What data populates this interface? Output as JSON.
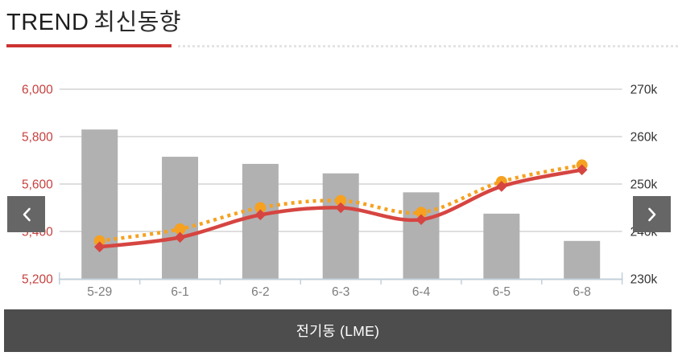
{
  "header": {
    "title_en": "TREND",
    "title_ko": "최신동향"
  },
  "carousel": {
    "prev_icon": "chevron-left",
    "next_icon": "chevron-right"
  },
  "caption": {
    "label": "전기동 (LME)"
  },
  "colors": {
    "accent_red": "#cc3232",
    "line_red": "#d64541",
    "line_orange": "#f6a11f",
    "bar_gray": "#b1b1b1",
    "grid_gray": "#d4d4d4",
    "axis_line": "#c2cfda",
    "x_label_gray": "#7d7d7d",
    "nav_button_bg": "#666666",
    "caption_bg": "#4d4d4d"
  },
  "chart_data": {
    "type": "bar",
    "subtype": "combo bar+line, dual axis",
    "title": "전기동 (LME)",
    "categories": [
      "5-29",
      "6-1",
      "6-2",
      "6-3",
      "6-4",
      "6-5",
      "6-8"
    ],
    "series": [
      {
        "name": "price-bars",
        "type": "bar",
        "axis": "left",
        "color": "#b1b1b1",
        "values": [
          5830,
          5715,
          5685,
          5645,
          5565,
          5475,
          5360
        ]
      },
      {
        "name": "inventory-line",
        "type": "line",
        "style": "dotted",
        "marker": "circle",
        "axis": "right",
        "color": "#f6a11f",
        "values": [
          238,
          240.5,
          245,
          246.5,
          244,
          250.5,
          254
        ]
      },
      {
        "name": "price-line",
        "type": "line",
        "style": "solid",
        "marker": "diamond",
        "axis": "left",
        "color": "#d64541",
        "values": [
          5335,
          5375,
          5470,
          5500,
          5450,
          5590,
          5660
        ]
      }
    ],
    "left_axis": {
      "min": 5200,
      "max": 6000,
      "label_color": "#c5413e",
      "ticks": [
        {
          "label": "6,000",
          "value": 6000
        },
        {
          "label": "5,800",
          "value": 5800
        },
        {
          "label": "5,600",
          "value": 5600
        },
        {
          "label": "5,400",
          "value": 5400
        },
        {
          "label": "5,200",
          "value": 5200
        }
      ]
    },
    "right_axis": {
      "min": 230,
      "max": 270,
      "label_color": "#333333",
      "ticks": [
        {
          "label": "270k",
          "value": 270
        },
        {
          "label": "260k",
          "value": 260
        },
        {
          "label": "250k",
          "value": 250
        },
        {
          "label": "240k",
          "value": 240
        },
        {
          "label": "230k",
          "value": 230
        }
      ]
    },
    "grid": true,
    "legend": false
  }
}
